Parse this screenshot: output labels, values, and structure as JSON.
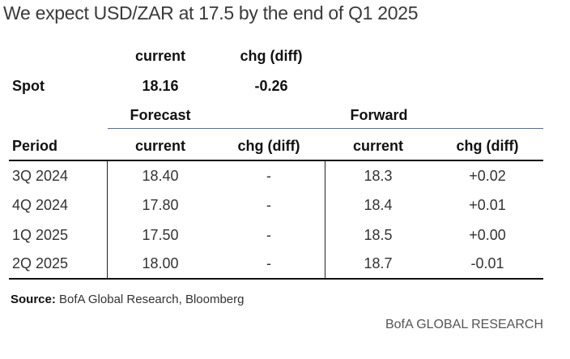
{
  "title": "We expect USD/ZAR at 17.5 by the end of Q1 2025",
  "spot": {
    "header_current": "current",
    "header_chg": "chg (diff)",
    "label": "Spot",
    "current": "18.16",
    "chg": "-0.26"
  },
  "groups": {
    "forecast": "Forecast",
    "forward": "Forward"
  },
  "columns": [
    "Period",
    "current",
    "chg (diff)",
    "current",
    "chg (diff)"
  ],
  "rows": [
    {
      "period": "3Q 2024",
      "fc_current": "18.40",
      "fc_chg": "-",
      "fw_current": "18.3",
      "fw_chg": "+0.02"
    },
    {
      "period": "4Q 2024",
      "fc_current": "17.80",
      "fc_chg": "-",
      "fw_current": "18.4",
      "fw_chg": "+0.01"
    },
    {
      "period": "1Q 2025",
      "fc_current": "17.50",
      "fc_chg": "-",
      "fw_current": "18.5",
      "fw_chg": "+0.00"
    },
    {
      "period": "2Q 2025",
      "fc_current": "18.00",
      "fc_chg": "-",
      "fw_current": "18.7",
      "fw_chg": "-0.01"
    }
  ],
  "source": {
    "label": "Source:",
    "text": " BofA Global Research, Bloomberg"
  },
  "brand": "BofA GLOBAL RESEARCH"
}
